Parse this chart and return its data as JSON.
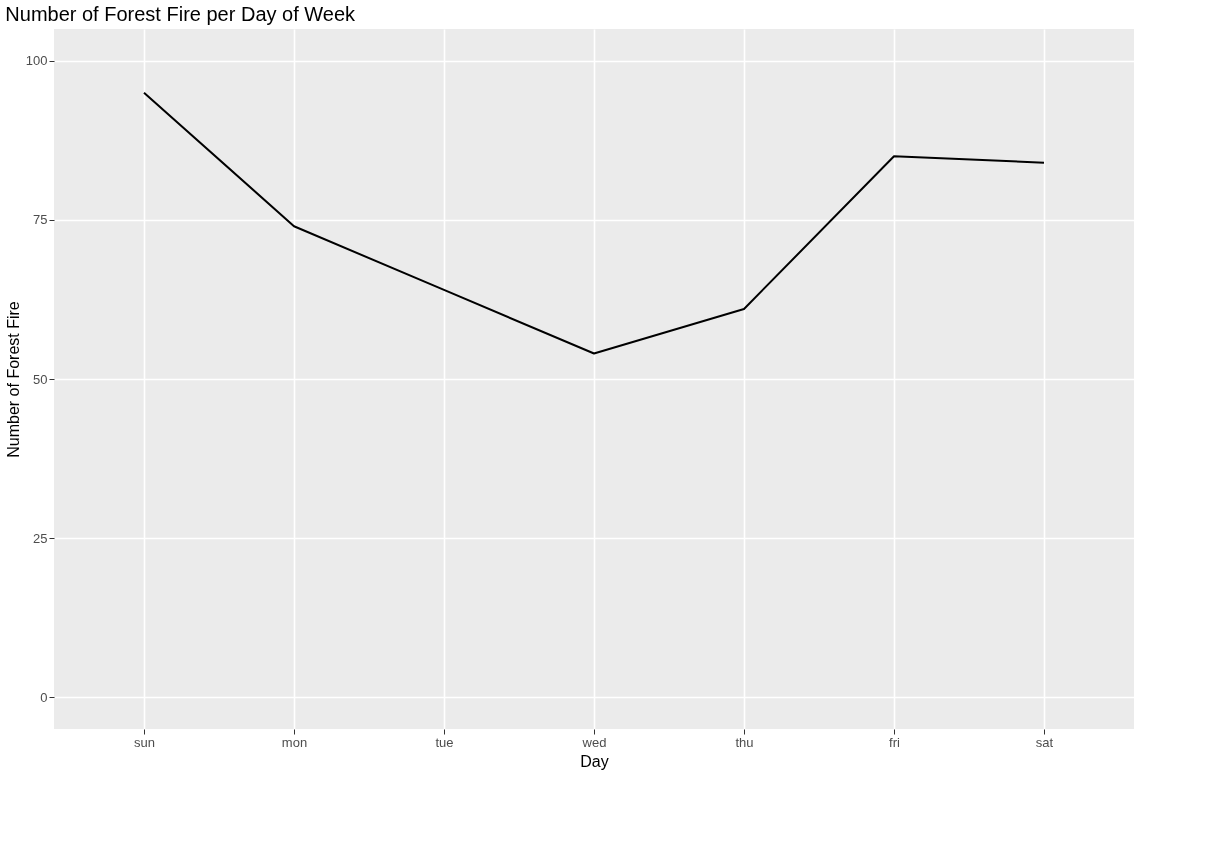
{
  "chart_data": {
    "type": "line",
    "title": "Number of Forest Fire per Day of Week",
    "xlabel": "Day",
    "ylabel": "Number of Forest Fire",
    "categories": [
      "sun",
      "mon",
      "tue",
      "wed",
      "thu",
      "fri",
      "sat"
    ],
    "series": [
      {
        "color": "#000000",
        "values": [
          95,
          74,
          64,
          54,
          61,
          85,
          84
        ]
      }
    ],
    "ylim": [
      -5,
      105
    ],
    "yticks": [
      0,
      25,
      50,
      75,
      100
    ],
    "grid": true,
    "legend": false,
    "marker": "none",
    "line_style": "solid"
  }
}
